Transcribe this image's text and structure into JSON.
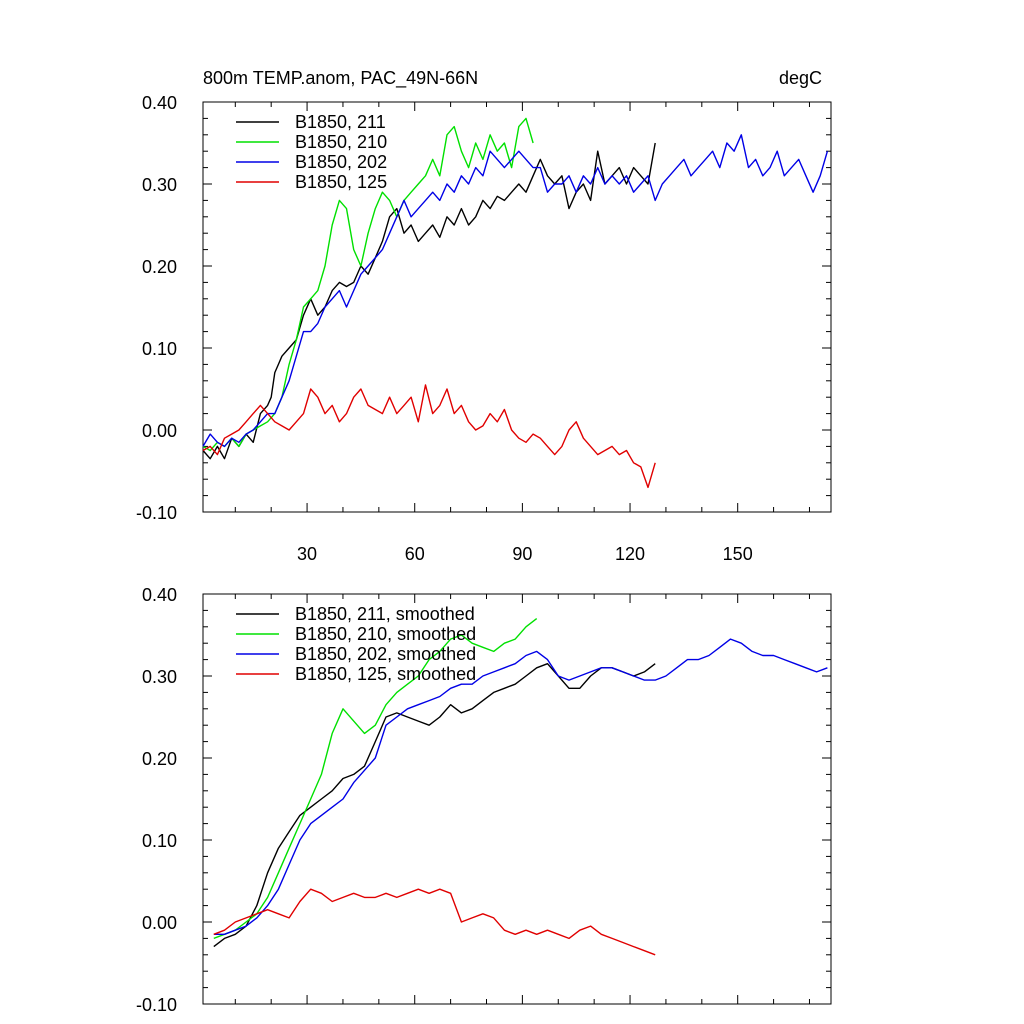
{
  "chart_data": [
    {
      "type": "line",
      "title": "800m TEMP.anom, PAC_49N-66N",
      "units": "degC",
      "xlim": [
        1,
        176
      ],
      "ylim": [
        -0.1,
        0.4
      ],
      "x_ticks": [
        30,
        60,
        90,
        120,
        150
      ],
      "x_tick_labels": [
        "30",
        "60",
        "90",
        "120",
        "150"
      ],
      "y_ticks": [
        -0.1,
        0.0,
        0.1,
        0.2,
        0.3,
        0.4
      ],
      "y_tick_labels": [
        "-0.10",
        "0.00",
        "0.10",
        "0.20",
        "0.30",
        "0.40"
      ],
      "legend_position": "top-left",
      "series": [
        {
          "name": "B1850, 211",
          "color": "#000000",
          "x": [
            1,
            3,
            5,
            7,
            9,
            11,
            13,
            15,
            17,
            19,
            20,
            21,
            22,
            23,
            25,
            27,
            29,
            31,
            33,
            35,
            37,
            39,
            41,
            43,
            45,
            47,
            49,
            51,
            53,
            55,
            57,
            59,
            61,
            63,
            65,
            67,
            69,
            71,
            73,
            75,
            77,
            79,
            81,
            83,
            85,
            87,
            89,
            91,
            93,
            95,
            97,
            99,
            101,
            103,
            105,
            107,
            109,
            111,
            113,
            115,
            117,
            119,
            121,
            123,
            125,
            127
          ],
          "values": [
            -0.025,
            -0.035,
            -0.02,
            -0.035,
            -0.01,
            -0.02,
            -0.005,
            -0.015,
            0.02,
            0.03,
            0.04,
            0.07,
            0.08,
            0.09,
            0.1,
            0.11,
            0.14,
            0.16,
            0.14,
            0.15,
            0.17,
            0.18,
            0.175,
            0.18,
            0.2,
            0.19,
            0.21,
            0.23,
            0.26,
            0.27,
            0.24,
            0.25,
            0.23,
            0.24,
            0.25,
            0.235,
            0.26,
            0.25,
            0.27,
            0.25,
            0.26,
            0.28,
            0.27,
            0.285,
            0.28,
            0.29,
            0.3,
            0.29,
            0.31,
            0.33,
            0.31,
            0.3,
            0.31,
            0.27,
            0.29,
            0.3,
            0.28,
            0.34,
            0.3,
            0.31,
            0.32,
            0.3,
            0.32,
            0.31,
            0.3,
            0.35
          ]
        },
        {
          "name": "B1850, 210",
          "color": "#00e000",
          "x": [
            1,
            3,
            5,
            7,
            9,
            11,
            13,
            15,
            17,
            19,
            21,
            23,
            25,
            27,
            29,
            31,
            33,
            35,
            37,
            39,
            41,
            43,
            45,
            47,
            49,
            51,
            53,
            55,
            57,
            59,
            61,
            63,
            65,
            67,
            69,
            71,
            73,
            75,
            77,
            79,
            81,
            83,
            85,
            87,
            89,
            91,
            93
          ],
          "values": [
            -0.02,
            -0.025,
            -0.015,
            -0.02,
            -0.01,
            -0.02,
            -0.005,
            0.0,
            0.005,
            0.01,
            0.02,
            0.04,
            0.08,
            0.11,
            0.15,
            0.16,
            0.17,
            0.2,
            0.25,
            0.28,
            0.27,
            0.22,
            0.2,
            0.24,
            0.27,
            0.29,
            0.28,
            0.26,
            0.28,
            0.29,
            0.3,
            0.31,
            0.33,
            0.31,
            0.36,
            0.37,
            0.34,
            0.32,
            0.35,
            0.33,
            0.36,
            0.34,
            0.35,
            0.32,
            0.37,
            0.38,
            0.35
          ]
        },
        {
          "name": "B1850, 202",
          "color": "#0000e6",
          "x": [
            1,
            3,
            5,
            7,
            9,
            11,
            13,
            15,
            17,
            19,
            21,
            23,
            25,
            27,
            29,
            31,
            33,
            35,
            37,
            39,
            41,
            43,
            45,
            47,
            49,
            51,
            53,
            55,
            57,
            59,
            61,
            63,
            65,
            67,
            69,
            71,
            73,
            75,
            77,
            79,
            81,
            83,
            85,
            87,
            89,
            91,
            93,
            95,
            97,
            99,
            101,
            103,
            105,
            107,
            109,
            111,
            113,
            115,
            117,
            119,
            121,
            123,
            125,
            127,
            129,
            131,
            133,
            135,
            137,
            139,
            141,
            143,
            145,
            147,
            149,
            151,
            153,
            155,
            157,
            159,
            161,
            163,
            165,
            167,
            169,
            171,
            173,
            175
          ],
          "values": [
            -0.02,
            -0.005,
            -0.015,
            -0.02,
            -0.01,
            -0.015,
            -0.005,
            0.0,
            0.01,
            0.02,
            0.02,
            0.04,
            0.06,
            0.09,
            0.12,
            0.12,
            0.13,
            0.15,
            0.16,
            0.17,
            0.15,
            0.17,
            0.19,
            0.2,
            0.21,
            0.22,
            0.24,
            0.26,
            0.28,
            0.26,
            0.27,
            0.28,
            0.29,
            0.28,
            0.3,
            0.29,
            0.31,
            0.3,
            0.32,
            0.31,
            0.34,
            0.33,
            0.32,
            0.33,
            0.34,
            0.33,
            0.32,
            0.32,
            0.29,
            0.3,
            0.3,
            0.31,
            0.29,
            0.31,
            0.3,
            0.32,
            0.3,
            0.31,
            0.3,
            0.31,
            0.29,
            0.3,
            0.31,
            0.28,
            0.3,
            0.31,
            0.32,
            0.33,
            0.31,
            0.32,
            0.33,
            0.34,
            0.32,
            0.35,
            0.34,
            0.36,
            0.32,
            0.33,
            0.31,
            0.32,
            0.34,
            0.31,
            0.32,
            0.33,
            0.31,
            0.29,
            0.31,
            0.34
          ]
        },
        {
          "name": "B1850, 125",
          "color": "#e00000",
          "x": [
            1,
            3,
            5,
            7,
            9,
            11,
            13,
            15,
            17,
            19,
            21,
            23,
            25,
            27,
            29,
            31,
            33,
            35,
            37,
            39,
            41,
            43,
            45,
            47,
            49,
            51,
            53,
            55,
            57,
            59,
            61,
            63,
            65,
            67,
            69,
            71,
            73,
            75,
            77,
            79,
            81,
            83,
            85,
            87,
            89,
            91,
            93,
            95,
            97,
            99,
            101,
            103,
            105,
            107,
            109,
            111,
            113,
            115,
            117,
            119,
            121,
            123,
            125,
            127
          ],
          "values": [
            -0.025,
            -0.02,
            -0.03,
            -0.01,
            -0.005,
            0.0,
            0.01,
            0.02,
            0.03,
            0.02,
            0.01,
            0.005,
            0.0,
            0.01,
            0.02,
            0.05,
            0.04,
            0.02,
            0.03,
            0.01,
            0.02,
            0.04,
            0.05,
            0.03,
            0.025,
            0.02,
            0.04,
            0.02,
            0.03,
            0.04,
            0.01,
            0.055,
            0.02,
            0.03,
            0.05,
            0.02,
            0.03,
            0.01,
            0.0,
            0.005,
            0.02,
            0.01,
            0.025,
            0.0,
            -0.01,
            -0.015,
            -0.005,
            -0.01,
            -0.02,
            -0.03,
            -0.02,
            0.0,
            0.01,
            -0.01,
            -0.02,
            -0.03,
            -0.025,
            -0.02,
            -0.03,
            -0.025,
            -0.04,
            -0.045,
            -0.07,
            -0.04
          ]
        }
      ]
    },
    {
      "type": "line",
      "title": "",
      "xlim": [
        1,
        176
      ],
      "ylim": [
        -0.1,
        0.4
      ],
      "y_ticks": [
        -0.1,
        0.0,
        0.1,
        0.2,
        0.3,
        0.4
      ],
      "y_tick_labels": [
        "-0.10",
        "0.00",
        "0.10",
        "0.20",
        "0.30",
        "0.40"
      ],
      "x_ticks": [
        30,
        60,
        90,
        120,
        150
      ],
      "legend_position": "top-left",
      "series": [
        {
          "name": "B1850, 211, smoothed",
          "color": "#000000",
          "x": [
            4,
            7,
            10,
            13,
            16,
            19,
            22,
            25,
            28,
            31,
            34,
            37,
            40,
            43,
            46,
            49,
            52,
            55,
            58,
            61,
            64,
            67,
            70,
            73,
            76,
            79,
            82,
            85,
            88,
            91,
            94,
            97,
            100,
            103,
            106,
            109,
            112,
            115,
            118,
            121,
            124,
            127
          ],
          "values": [
            -0.03,
            -0.02,
            -0.015,
            -0.005,
            0.02,
            0.06,
            0.09,
            0.11,
            0.13,
            0.14,
            0.15,
            0.16,
            0.175,
            0.18,
            0.19,
            0.22,
            0.25,
            0.255,
            0.25,
            0.245,
            0.24,
            0.25,
            0.265,
            0.255,
            0.26,
            0.27,
            0.28,
            0.285,
            0.29,
            0.3,
            0.31,
            0.315,
            0.3,
            0.285,
            0.285,
            0.3,
            0.31,
            0.31,
            0.305,
            0.3,
            0.305,
            0.315
          ]
        },
        {
          "name": "B1850, 210, smoothed",
          "color": "#00e000",
          "x": [
            4,
            7,
            10,
            13,
            16,
            19,
            22,
            25,
            28,
            31,
            34,
            37,
            40,
            43,
            46,
            49,
            52,
            55,
            58,
            61,
            64,
            67,
            70,
            73,
            76,
            79,
            82,
            85,
            88,
            91,
            94
          ],
          "values": [
            -0.02,
            -0.015,
            -0.01,
            0.0,
            0.01,
            0.03,
            0.06,
            0.09,
            0.12,
            0.15,
            0.18,
            0.23,
            0.26,
            0.245,
            0.23,
            0.24,
            0.265,
            0.28,
            0.29,
            0.3,
            0.32,
            0.33,
            0.345,
            0.35,
            0.34,
            0.335,
            0.33,
            0.34,
            0.345,
            0.36,
            0.37
          ]
        },
        {
          "name": "B1850, 202, smoothed",
          "color": "#0000e6",
          "x": [
            4,
            7,
            10,
            13,
            16,
            19,
            22,
            25,
            28,
            31,
            34,
            37,
            40,
            43,
            46,
            49,
            52,
            55,
            58,
            61,
            64,
            67,
            70,
            73,
            76,
            79,
            82,
            85,
            88,
            91,
            94,
            97,
            100,
            103,
            106,
            109,
            112,
            115,
            118,
            121,
            124,
            127,
            130,
            133,
            136,
            139,
            142,
            145,
            148,
            151,
            154,
            157,
            160,
            163,
            166,
            169,
            172,
            175
          ],
          "values": [
            -0.015,
            -0.015,
            -0.01,
            -0.005,
            0.005,
            0.02,
            0.04,
            0.07,
            0.1,
            0.12,
            0.13,
            0.14,
            0.15,
            0.17,
            0.185,
            0.2,
            0.24,
            0.25,
            0.26,
            0.265,
            0.27,
            0.275,
            0.285,
            0.29,
            0.29,
            0.3,
            0.305,
            0.31,
            0.315,
            0.325,
            0.33,
            0.32,
            0.3,
            0.295,
            0.3,
            0.305,
            0.31,
            0.31,
            0.305,
            0.3,
            0.295,
            0.295,
            0.3,
            0.31,
            0.32,
            0.32,
            0.325,
            0.335,
            0.345,
            0.34,
            0.33,
            0.325,
            0.325,
            0.32,
            0.315,
            0.31,
            0.305,
            0.31
          ]
        },
        {
          "name": "B1850, 125, smoothed",
          "color": "#e00000",
          "x": [
            4,
            7,
            10,
            13,
            16,
            19,
            22,
            25,
            28,
            31,
            34,
            37,
            40,
            43,
            46,
            49,
            52,
            55,
            58,
            61,
            64,
            67,
            70,
            73,
            76,
            79,
            82,
            85,
            88,
            91,
            94,
            97,
            100,
            103,
            106,
            109,
            112,
            115,
            118,
            121,
            124,
            127
          ],
          "values": [
            -0.015,
            -0.01,
            0.0,
            0.005,
            0.01,
            0.015,
            0.01,
            0.005,
            0.025,
            0.04,
            0.035,
            0.025,
            0.03,
            0.035,
            0.03,
            0.03,
            0.035,
            0.03,
            0.035,
            0.04,
            0.035,
            0.04,
            0.035,
            0.0,
            0.005,
            0.01,
            0.005,
            -0.01,
            -0.015,
            -0.01,
            -0.015,
            -0.01,
            -0.015,
            -0.02,
            -0.01,
            -0.005,
            -0.015,
            -0.02,
            -0.025,
            -0.03,
            -0.035,
            -0.04
          ]
        }
      ]
    }
  ]
}
